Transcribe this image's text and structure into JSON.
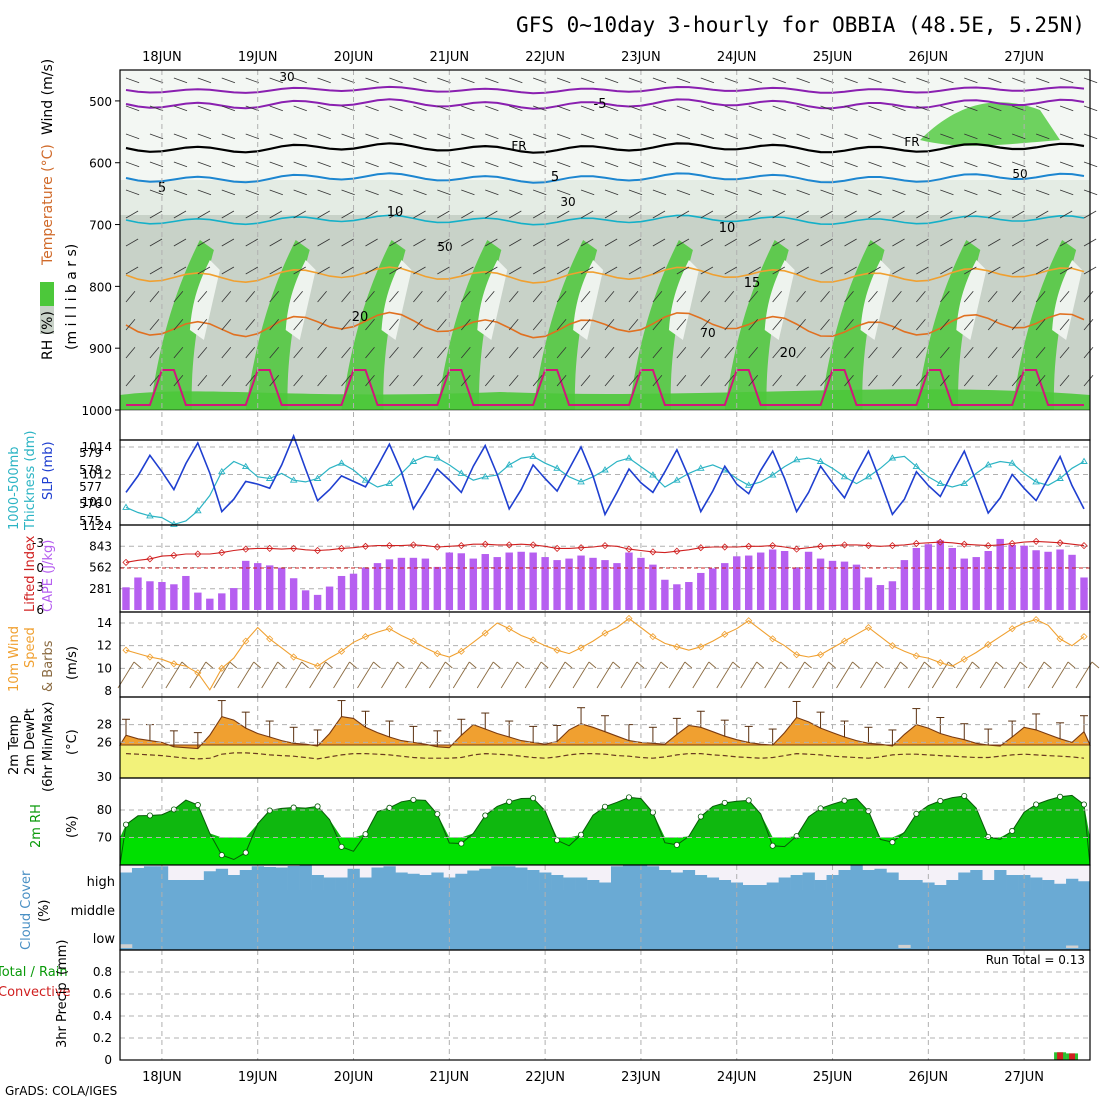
{
  "title": "GFS 0~10day 3-hourly for OBBIA (48.5E, 5.25N)",
  "credit": "GrADS: COLA/IGES",
  "dates": [
    "18JUN",
    "19JUN",
    "20JUN",
    "21JUN",
    "22JUN",
    "23JUN",
    "24JUN",
    "25JUN",
    "26JUN",
    "27JUN"
  ],
  "colors": {
    "green": "#4cc83a",
    "lightgreen": "#00e000",
    "grey": "#c8cfc8",
    "blue": "#1f3fd0",
    "cyan": "#2cb4c4",
    "purple": "#b65ff0",
    "red": "#d02020",
    "orange": "#f0a030",
    "yellow": "#f2f27a",
    "cloud": "#6aaad4",
    "brown": "#8a6a40"
  },
  "labels": {
    "upper_rh": "RH (%)",
    "upper_temp": "Temperature (°C)",
    "upper_wind": "Wind (m/s)",
    "upper_units": "(m i l l i b a r s)",
    "slp": "SLP (mb)",
    "thick_a": "1000-500mb",
    "thick_b": "Thickness (dm)",
    "li": "Lifted Index",
    "cape": "CAPE (J/kg)",
    "wind_a": "10m Wind",
    "wind_b": "Speed",
    "wind_c": "& Barbs",
    "wind_units": "(m/s)",
    "temp_a": "2m Temp",
    "temp_b": "2m DewPt",
    "temp_c": "(6hr Min/Max)",
    "temp_units": "(°C)",
    "rh_a": "2m RH",
    "rh_units": "(%)",
    "cloud_a": "Cloud Cover",
    "cloud_units": "(%)",
    "precip_a": "Total / Rain",
    "precip_b": "Convective",
    "precip_c": "3hr Precip",
    "precip_units": "(mm)",
    "run_total": "Run Total = 0.13",
    "cloud_levels": [
      "high",
      "middle",
      "low"
    ],
    "contours": {
      "t5a": "-5",
      "t5b": "5",
      "t10": "10",
      "t15": "15",
      "t20a": "20",
      "t20b": "20",
      "fr": "FR",
      "rh30": "30",
      "rh50": "50",
      "rh70": "70"
    }
  },
  "chart_data": [
    {
      "type": "heatmap",
      "name": "upper_air",
      "ylabel": "millibars",
      "ylim": [
        1000,
        450
      ],
      "yticks": [
        500,
        600,
        700,
        800,
        900,
        1000
      ],
      "rh_shading_levels": [
        30,
        50,
        70,
        90
      ],
      "temperature_contours_C": [
        -5,
        0,
        5,
        10,
        15,
        20,
        25
      ],
      "freezing_level_mb": 585
    },
    {
      "type": "line",
      "name": "slp_thickness",
      "y_left_label": "1000-500mb Thickness (dm)",
      "y_left_ticks": [
        575,
        576,
        577,
        578,
        579
      ],
      "y_right_label": "SLP (mb)",
      "y_right_ticks": [
        1010,
        1012,
        1014
      ],
      "y_right_extra_tick": "1124",
      "slp": [
        1010.7,
        1011.9,
        1013.4,
        1012.2,
        1010.9,
        1012.8,
        1014.3,
        1012.1,
        1009.3,
        1010.2,
        1011.5,
        1011.3,
        1011.0,
        1012.7,
        1014.8,
        1012.4,
        1010.1,
        1010.9,
        1011.9,
        1011.5,
        1011.1,
        1012.6,
        1014.2,
        1012.2,
        1009.5,
        1010.9,
        1012.4,
        1011.6,
        1010.7,
        1012.6,
        1014.1,
        1012.0,
        1009.5,
        1010.9,
        1012.7,
        1011.7,
        1010.8,
        1012.4,
        1014.0,
        1011.9,
        1009.1,
        1010.7,
        1012.4,
        1011.4,
        1010.7,
        1012.2,
        1013.8,
        1011.8,
        1009.3,
        1010.8,
        1012.6,
        1011.3,
        1010.6,
        1012.3,
        1013.7,
        1011.7,
        1009.3,
        1010.7,
        1012.6,
        1011.4,
        1010.3,
        1012.1,
        1013.7,
        1011.5,
        1009.1,
        1010.2,
        1012.2,
        1011.2,
        1010.4,
        1012.1,
        1013.7,
        1011.5,
        1009.2,
        1010.3,
        1012.0,
        1011.0,
        1010.1,
        1011.7,
        1013.3,
        1011.2,
        1009.5
      ],
      "thickness": [
        575.8,
        575.5,
        575.3,
        575.2,
        574.8,
        575.0,
        575.6,
        576.5,
        577.9,
        578.5,
        578.2,
        577.6,
        577.5,
        577.8,
        577.4,
        577.3,
        577.5,
        578.1,
        578.4,
        578.0,
        577.4,
        577.0,
        577.2,
        577.8,
        578.5,
        578.8,
        578.7,
        578.3,
        577.8,
        577.4,
        577.6,
        577.7,
        578.3,
        578.7,
        578.8,
        578.4,
        578.1,
        577.6,
        577.3,
        577.6,
        578.0,
        578.5,
        578.7,
        578.2,
        577.7,
        577.0,
        577.4,
        577.8,
        578.1,
        578.3,
        578.0,
        577.5,
        577.1,
        577.3,
        577.7,
        578.2,
        578.6,
        578.7,
        578.5,
        578.1,
        577.6,
        577.2,
        577.6,
        578.1,
        578.7,
        578.8,
        578.2,
        577.6,
        577.2,
        577.0,
        577.2,
        577.8,
        578.3,
        578.5,
        578.4,
        577.8,
        577.3,
        577.1,
        577.5,
        578.1,
        578.5
      ]
    },
    {
      "type": "bar",
      "name": "cape_li",
      "y_left_label": "Lifted Index",
      "y_left_ticks": [
        "-3",
        "0",
        "3",
        "6"
      ],
      "y_right_label": "CAPE (J/kg)",
      "y_right_ticks": [
        281,
        562,
        843
      ],
      "cape": [
        300,
        430,
        380,
        370,
        340,
        450,
        230,
        150,
        220,
        290,
        650,
        620,
        590,
        560,
        420,
        260,
        200,
        310,
        450,
        480,
        560,
        620,
        670,
        690,
        690,
        680,
        570,
        760,
        750,
        680,
        740,
        700,
        760,
        770,
        760,
        700,
        660,
        680,
        720,
        690,
        660,
        620,
        760,
        690,
        600,
        400,
        340,
        370,
        490,
        550,
        620,
        710,
        720,
        760,
        800,
        780,
        560,
        770,
        680,
        650,
        640,
        600,
        430,
        330,
        380,
        660,
        820,
        870,
        920,
        820,
        680,
        700,
        780,
        940,
        860,
        850,
        790,
        770,
        800,
        730,
        430
      ],
      "li": [
        -0.8,
        -1.1,
        -1.3,
        -1.7,
        -1.8,
        -2.0,
        -2.0,
        -2.0,
        -2.2,
        -2.5,
        -2.7,
        -2.8,
        -2.8,
        -2.7,
        -2.8,
        -2.6,
        -2.5,
        -2.6,
        -2.8,
        -2.9,
        -3.1,
        -3.2,
        -3.2,
        -3.2,
        -3.3,
        -3.2,
        -3.0,
        -3.1,
        -3.2,
        -3.4,
        -3.4,
        -3.3,
        -3.3,
        -3.4,
        -3.3,
        -3.1,
        -2.8,
        -2.8,
        -2.9,
        -3.0,
        -3.2,
        -3.1,
        -2.7,
        -2.5,
        -2.3,
        -2.2,
        -2.4,
        -2.6,
        -2.9,
        -3.0,
        -3.0,
        -3.0,
        -3.1,
        -3.1,
        -3.2,
        -3.0,
        -2.7,
        -2.9,
        -3.1,
        -3.2,
        -3.3,
        -3.3,
        -3.2,
        -3.1,
        -3.2,
        -3.3,
        -3.5,
        -3.6,
        -3.7,
        -3.6,
        -3.4,
        -3.3,
        -3.2,
        -3.3,
        -3.5,
        -3.7,
        -3.8,
        -3.7,
        -3.6,
        -3.4,
        -3.2
      ]
    },
    {
      "type": "line",
      "name": "wind10m",
      "ylabel": "(m/s)",
      "yticks": [
        8,
        10,
        12,
        14
      ],
      "speed": [
        11.6,
        11.3,
        11.0,
        10.8,
        10.4,
        10.2,
        9.6,
        8.1,
        10.0,
        10.9,
        12.4,
        13.6,
        12.6,
        11.8,
        11.0,
        10.6,
        10.2,
        10.9,
        11.5,
        12.3,
        12.8,
        13.2,
        13.5,
        12.9,
        12.4,
        11.8,
        11.3,
        11.0,
        11.5,
        12.3,
        13.1,
        14.0,
        13.5,
        12.9,
        12.5,
        12.0,
        11.6,
        11.3,
        11.8,
        12.4,
        13.1,
        13.6,
        14.4,
        13.6,
        12.8,
        12.2,
        11.9,
        11.6,
        11.9,
        12.4,
        13.0,
        13.5,
        14.2,
        13.4,
        12.6,
        12.0,
        11.2,
        11.0,
        11.2,
        11.8,
        12.4,
        13.0,
        13.6,
        12.8,
        12.0,
        11.5,
        11.1,
        10.9,
        10.5,
        10.2,
        10.8,
        11.4,
        12.1,
        12.8,
        13.5,
        14.0,
        14.3,
        13.8,
        12.6,
        12.0,
        12.8
      ]
    },
    {
      "type": "area",
      "name": "temp2m",
      "ylabel": "(°C)",
      "yticks": [
        26,
        28,
        30
      ],
      "temperature": [
        26.8,
        26.4,
        26.2,
        26.0,
        25.5,
        25.4,
        25.3,
        26.8,
        28.9,
        28.5,
        27.6,
        27.0,
        26.6,
        26.2,
        25.9,
        25.8,
        25.6,
        27.0,
        28.9,
        28.7,
        27.7,
        27.1,
        26.6,
        26.2,
        26.0,
        25.8,
        25.5,
        25.4,
        26.8,
        28.0,
        27.5,
        27.0,
        26.6,
        26.2,
        26.0,
        25.8,
        26.1,
        27.4,
        28.1,
        27.7,
        27.2,
        26.7,
        26.2,
        26.0,
        25.9,
        25.8,
        26.9,
        27.9,
        27.7,
        27.2,
        26.7,
        26.3,
        26.0,
        25.8,
        25.7,
        27.1,
        28.8,
        28.3,
        27.6,
        27.1,
        26.6,
        26.2,
        25.9,
        25.8,
        25.6,
        26.9,
        28.0,
        27.6,
        27.0,
        26.6,
        26.3,
        25.9,
        25.7,
        25.6,
        26.6,
        27.7,
        27.4,
        26.9,
        26.4,
        26.0,
        27.2
      ],
      "dewpoint": [
        23.2,
        23.1,
        23.0,
        22.9,
        22.7,
        22.5,
        22.4,
        22.5,
        23.1,
        23.3,
        23.3,
        23.2,
        23.0,
        22.9,
        22.8,
        22.6,
        22.4,
        22.7,
        23.0,
        23.2,
        23.2,
        23.1,
        23.0,
        22.8,
        22.6,
        22.5,
        22.5,
        22.5,
        22.6,
        23.0,
        23.2,
        23.1,
        23.0,
        22.8,
        22.6,
        22.5,
        22.7,
        23.0,
        23.2,
        23.2,
        23.1,
        22.9,
        22.8,
        22.6,
        22.5,
        22.7,
        23.0,
        23.2,
        23.2,
        23.0,
        22.9,
        22.7,
        22.6,
        22.5,
        22.6,
        22.9,
        23.2,
        23.1,
        23.0,
        22.8,
        22.7,
        22.6,
        22.5,
        22.7,
        23.0,
        23.1,
        23.1,
        23.0,
        22.9,
        22.8,
        22.7,
        22.6,
        22.6,
        22.8,
        23.0,
        23.1,
        23.0,
        22.9,
        22.8,
        22.7,
        22.5
      ]
    },
    {
      "type": "area",
      "name": "rh2m",
      "ylabel": "(%)",
      "yticks": [
        70,
        80
      ],
      "rh": [
        74.7,
        77.9,
        78.0,
        78.3,
        80.2,
        83.6,
        81.8,
        71.5,
        63.6,
        62.0,
        64.5,
        75.0,
        79.8,
        80.6,
        80.9,
        80.7,
        81.3,
        76.5,
        66.6,
        65.0,
        71.2,
        79.4,
        80.8,
        83.0,
        83.7,
        83.5,
        78.5,
        68.0,
        67.8,
        71.5,
        78.0,
        81.3,
        83.0,
        84.2,
        84.3,
        79.7,
        69.0,
        67.0,
        71.0,
        78.1,
        81.2,
        82.8,
        84.6,
        84.2,
        79.1,
        68.1,
        67.3,
        70.4,
        77.6,
        81.3,
        82.6,
        83.2,
        83.5,
        78.6,
        67.0,
        66.7,
        70.5,
        77.5,
        80.6,
        82.1,
        83.4,
        84.2,
        79.6,
        69.3,
        68.3,
        71.9,
        78.6,
        81.6,
        83.3,
        84.5,
        85.1,
        80.7,
        70.2,
        69.3,
        72.4,
        79.2,
        82.0,
        83.6,
        84.8,
        85.3,
        82.0
      ]
    },
    {
      "type": "bar",
      "name": "cloud_cover",
      "levels": [
        "high",
        "middle",
        "low"
      ],
      "high_pct": [
        70,
        88,
        95,
        95,
        40,
        40,
        40,
        75,
        85,
        60,
        80,
        95,
        92,
        90,
        96,
        100,
        60,
        50,
        50,
        85,
        50,
        90,
        95,
        70,
        65,
        60,
        70,
        50,
        65,
        78,
        85,
        95,
        95,
        90,
        80,
        70,
        60,
        50,
        50,
        40,
        30,
        95,
        98,
        100,
        95,
        80,
        70,
        80,
        60,
        50,
        40,
        30,
        20,
        20,
        30,
        50,
        60,
        70,
        40,
        60,
        80,
        100,
        80,
        85,
        70,
        40,
        40,
        30,
        20,
        40,
        70,
        80,
        40,
        80,
        60,
        60,
        50,
        40,
        25,
        45,
        35
      ],
      "middle_pct": [
        100,
        100,
        100,
        100,
        100,
        100,
        100,
        100,
        100,
        100,
        100,
        100,
        100,
        100,
        100,
        100,
        100,
        100,
        100,
        100,
        100,
        100,
        100,
        100,
        100,
        100,
        100,
        100,
        100,
        100,
        100,
        100,
        100,
        100,
        100,
        100,
        100,
        100,
        100,
        100,
        100,
        100,
        100,
        100,
        100,
        100,
        100,
        100,
        100,
        100,
        100,
        100,
        100,
        100,
        100,
        100,
        100,
        100,
        100,
        100,
        100,
        100,
        100,
        100,
        100,
        100,
        100,
        100,
        100,
        100,
        100,
        100,
        100,
        100,
        100,
        100,
        100,
        100,
        100,
        100,
        100
      ],
      "low_pct": [
        30,
        0,
        0,
        0,
        0,
        0,
        0,
        0,
        0,
        0,
        0,
        0,
        0,
        0,
        0,
        0,
        0,
        0,
        0,
        0,
        0,
        0,
        0,
        0,
        0,
        0,
        0,
        0,
        0,
        0,
        0,
        0,
        0,
        0,
        0,
        0,
        0,
        0,
        0,
        0,
        0,
        0,
        0,
        0,
        0,
        0,
        0,
        0,
        0,
        0,
        0,
        0,
        0,
        0,
        0,
        0,
        0,
        0,
        0,
        0,
        0,
        0,
        0,
        0,
        0,
        25,
        0,
        0,
        0,
        0,
        0,
        0,
        0,
        0,
        0,
        0,
        0,
        0,
        0,
        20,
        0
      ]
    },
    {
      "type": "bar",
      "name": "precip3h",
      "ylabel": "3hr Precip (mm)",
      "ylim": [
        0,
        1
      ],
      "yticks": [
        0,
        0.2,
        0.4,
        0.6,
        0.8
      ],
      "total_mm": [
        0,
        0,
        0,
        0,
        0,
        0,
        0,
        0,
        0,
        0,
        0,
        0,
        0,
        0,
        0,
        0,
        0,
        0,
        0,
        0,
        0,
        0,
        0,
        0,
        0,
        0,
        0,
        0,
        0,
        0,
        0,
        0,
        0,
        0,
        0,
        0,
        0,
        0,
        0,
        0,
        0,
        0,
        0,
        0,
        0,
        0,
        0,
        0,
        0,
        0,
        0,
        0,
        0,
        0,
        0,
        0,
        0,
        0,
        0,
        0,
        0,
        0,
        0,
        0,
        0,
        0,
        0,
        0,
        0,
        0,
        0,
        0,
        0,
        0,
        0,
        0,
        0,
        0,
        0.07,
        0.06,
        0
      ]
    }
  ]
}
